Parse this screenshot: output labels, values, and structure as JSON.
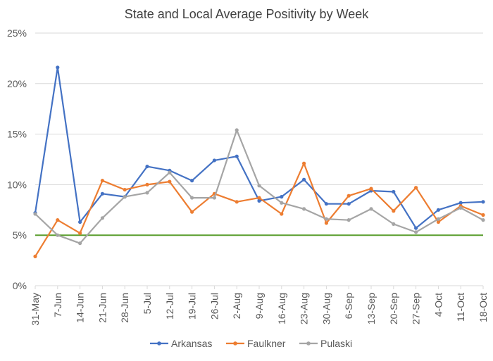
{
  "chart_data": {
    "type": "line",
    "title": "State and Local Average Positivity by Week",
    "xlabel": "",
    "ylabel": "",
    "ylim": [
      0,
      25
    ],
    "yticks": [
      0,
      5,
      10,
      15,
      20,
      25
    ],
    "ytick_labels": [
      "0%",
      "5%",
      "10%",
      "15%",
      "20%",
      "25%"
    ],
    "grid": true,
    "legend_position": "bottom",
    "categories": [
      "31-May",
      "7-Jun",
      "14-Jun",
      "21-Jun",
      "28-Jun",
      "5-Jul",
      "12-Jul",
      "19-Jul",
      "26-Jul",
      "2-Aug",
      "9-Aug",
      "16-Aug",
      "23-Aug",
      "30-Aug",
      "6-Sep",
      "13-Sep",
      "20-Sep",
      "27-Sep",
      "4-Oct",
      "11-Oct",
      "18-Oct"
    ],
    "series": [
      {
        "name": "Arkansas",
        "color": "#4472C4",
        "values": [
          7.2,
          21.6,
          6.3,
          9.1,
          8.8,
          11.8,
          11.4,
          10.4,
          12.4,
          12.8,
          8.4,
          8.8,
          10.5,
          8.1,
          8.1,
          9.4,
          9.3,
          5.7,
          7.5,
          8.2,
          8.3
        ]
      },
      {
        "name": "Faulkner",
        "color": "#ED7D31",
        "values": [
          2.9,
          6.5,
          5.2,
          10.4,
          9.5,
          10.0,
          10.3,
          7.3,
          9.1,
          8.3,
          8.7,
          7.1,
          12.1,
          6.2,
          8.9,
          9.6,
          7.4,
          9.7,
          6.3,
          7.9,
          7.0
        ]
      },
      {
        "name": "Pulaski",
        "color": "#A5A5A5",
        "values": [
          7.1,
          5.0,
          4.2,
          6.7,
          8.8,
          9.2,
          11.2,
          8.7,
          8.7,
          15.4,
          9.9,
          8.2,
          7.6,
          6.6,
          6.5,
          7.6,
          6.1,
          5.3,
          6.6,
          7.7,
          6.5
        ]
      }
    ],
    "reference_line": {
      "value": 5,
      "color": "#5A9E2E"
    }
  }
}
